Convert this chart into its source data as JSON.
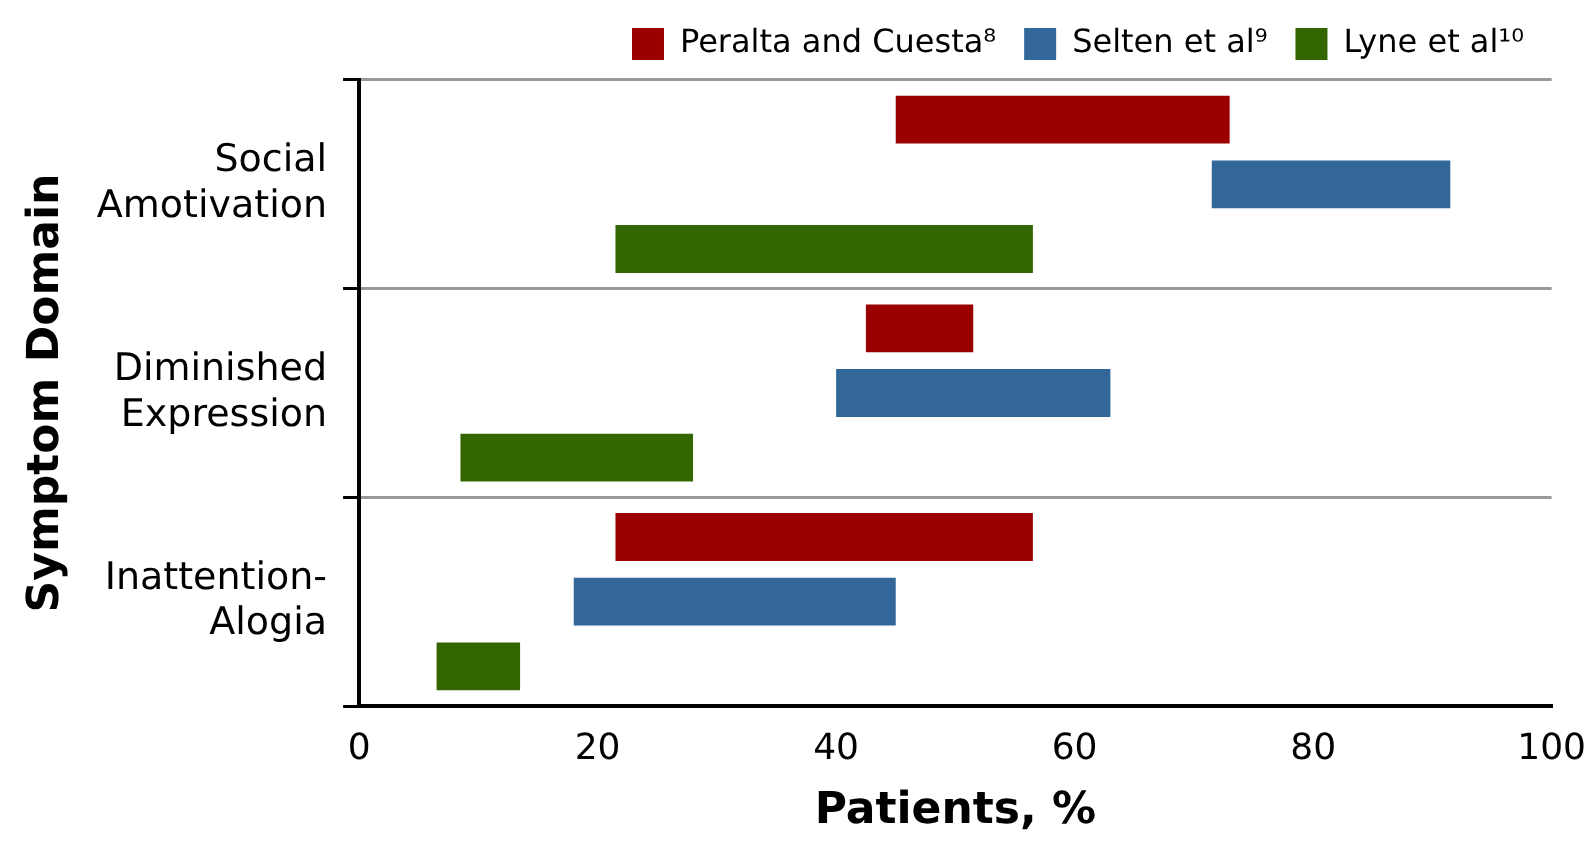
{
  "chart_data": {
    "type": "bar",
    "orientation": "horizontal",
    "xlabel": "Patients, %",
    "ylabel": "Symptom Domain",
    "categories": [
      "Social\nAmotivation",
      "Diminished\nExpression",
      "Inattention-\nAlogia"
    ],
    "series": [
      {
        "name": "Peralta and Cuesta⁸",
        "color": "#9b0000",
        "base": [
          45,
          42.5,
          21.5
        ],
        "values": [
          28,
          9,
          35
        ]
      },
      {
        "name": "Selten et al⁹",
        "color": "#336699",
        "base": [
          71.5,
          40,
          18
        ],
        "values": [
          20,
          23,
          27
        ]
      },
      {
        "name": "Lyne et al¹⁰",
        "color": "#336600",
        "base": [
          21.5,
          8.5,
          6.5
        ],
        "values": [
          35,
          19.5,
          7
        ]
      }
    ],
    "xlim": [
      0,
      100
    ],
    "xticks": [
      0,
      20,
      40,
      60,
      80,
      100
    ],
    "grid": "y",
    "legend": "top right"
  }
}
